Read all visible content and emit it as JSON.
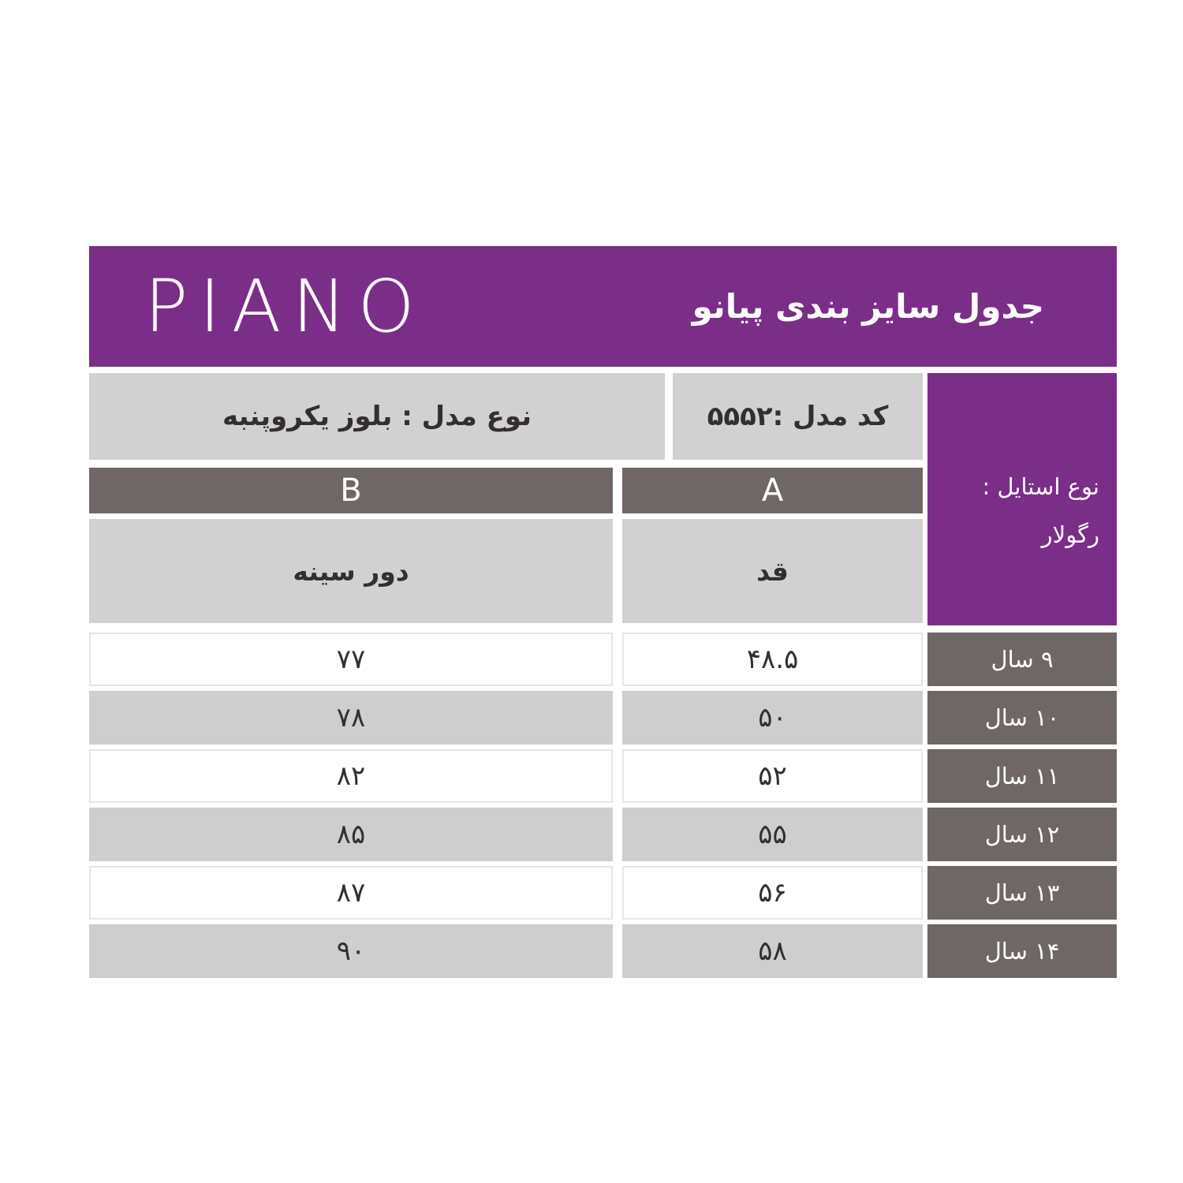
{
  "colors": {
    "purple": "#7b2e88",
    "dark": "#6e6765",
    "cell": "#d2d1d1",
    "rowgray": "#cfcece",
    "rowborder": "#e7e5e5",
    "ink": "#332e33"
  },
  "brand": {
    "logo": "PIANO"
  },
  "header": {
    "title": "جدول سایز بندی پیانو"
  },
  "info_row": {
    "model_type": "نوع مدل : بلوز یکروپنبه",
    "model_code": "کد مدل :۵۵۵۲"
  },
  "style_cell": {
    "label": "نوع استایل :",
    "value": "رگولار"
  },
  "table": {
    "col_b": {
      "letter": "B",
      "measure": "دور سینه"
    },
    "col_a": {
      "letter": "A",
      "measure": "قد"
    },
    "rows": [
      {
        "age": "۹ سال",
        "height": "۴۸.۵",
        "chest": "۷۷"
      },
      {
        "age": "۱۰ سال",
        "height": "۵۰",
        "chest": "۷۸"
      },
      {
        "age": "۱۱ سال",
        "height": "۵۲",
        "chest": "۸۲"
      },
      {
        "age": "۱۲ سال",
        "height": "۵۵",
        "chest": "۸۵"
      },
      {
        "age": "۱۳ سال",
        "height": "۵۶",
        "chest": "۸۷"
      },
      {
        "age": "۱۴ سال",
        "height": "۵۸",
        "chest": "۹۰"
      }
    ]
  }
}
